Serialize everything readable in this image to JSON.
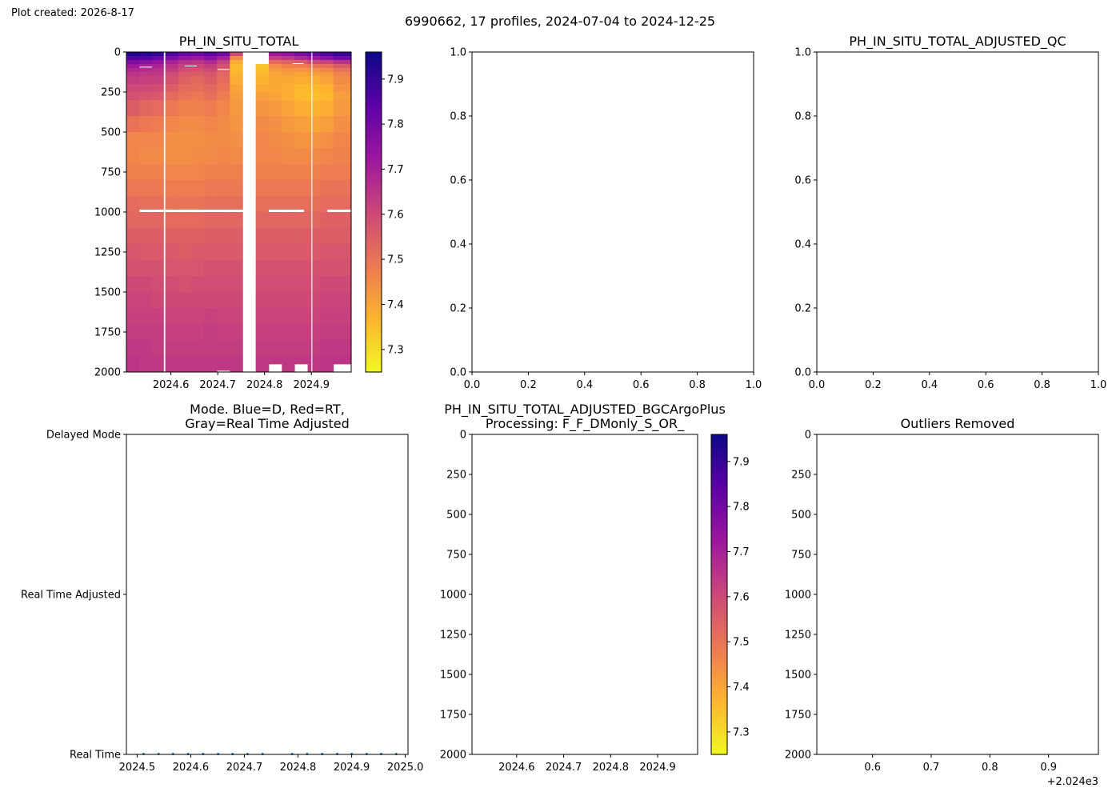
{
  "created_label": "Plot created: 2026-8-17",
  "suptitle": "6990662, 17 profiles, 2024-07-04 to 2024-12-25",
  "colormap": [
    "#0d0887",
    "#5c01a6",
    "#9c179e",
    "#cc4778",
    "#ed7953",
    "#fdb42f",
    "#f0f921"
  ],
  "chart_data": [
    {
      "id": "ph_raw",
      "type": "heatmap",
      "title": "PH_IN_SITU_TOTAL",
      "x": {
        "min": 2024.505,
        "max": 2024.985,
        "ticks": [
          2024.6,
          2024.7,
          2024.8,
          2024.9
        ],
        "tick_labels": [
          "2024.6",
          "2024.7",
          "2024.8",
          "2024.9"
        ]
      },
      "y": {
        "min": 0,
        "max": 2000,
        "inverted": true,
        "ticks": [
          0,
          250,
          500,
          750,
          1000,
          1250,
          1500,
          1750,
          2000
        ],
        "tick_labels": [
          "0",
          "250",
          "500",
          "750",
          "1000",
          "1250",
          "1500",
          "1750",
          "2000"
        ]
      },
      "colorbar": {
        "min": 7.25,
        "max": 7.96,
        "ticks": [
          7.3,
          7.4,
          7.5,
          7.6,
          7.7,
          7.8,
          7.9
        ],
        "tick_labels": [
          "7.3",
          "7.4",
          "7.5",
          "7.6",
          "7.7",
          "7.8",
          "7.9"
        ]
      },
      "profile_times": [
        2024.505,
        2024.533,
        2024.56,
        2024.588,
        2024.616,
        2024.643,
        2024.671,
        2024.698,
        2024.726,
        2024.754,
        2024.781,
        2024.809,
        2024.837,
        2024.864,
        2024.892,
        2024.919,
        2024.947,
        2024.985
      ],
      "depth_levels": [
        0,
        25,
        50,
        75,
        100,
        125,
        150,
        200,
        250,
        300,
        400,
        500,
        600,
        700,
        800,
        900,
        1000,
        1100,
        1200,
        1300,
        1400,
        1500,
        1600,
        1700,
        1800,
        1900,
        2000
      ],
      "profiles": [
        {
          "t0": 2024.505,
          "t1": 2024.533,
          "bottom": 2000,
          "ph": [
            7.93,
            7.86,
            7.78,
            7.72,
            7.68,
            7.65,
            7.63,
            7.6,
            7.58,
            7.55,
            7.5,
            7.46,
            7.46,
            7.47,
            7.49,
            7.52,
            7.53,
            7.55,
            7.57,
            7.58,
            7.6,
            7.61,
            7.62,
            7.63,
            7.64,
            7.65
          ]
        },
        {
          "t0": 2024.533,
          "t1": 2024.56,
          "bottom": 2000,
          "ph": [
            7.92,
            7.85,
            7.76,
            7.7,
            7.67,
            7.64,
            7.62,
            7.6,
            7.57,
            7.53,
            7.49,
            7.46,
            7.45,
            7.47,
            7.49,
            7.51,
            7.53,
            7.55,
            7.56,
            7.58,
            7.6,
            7.61,
            7.62,
            7.63,
            7.64,
            7.64
          ]
        },
        {
          "t0": 2024.56,
          "t1": 2024.588,
          "bottom": 2000,
          "ph": [
            7.9,
            7.82,
            7.74,
            7.69,
            7.66,
            7.64,
            7.62,
            7.59,
            7.56,
            7.52,
            7.48,
            7.46,
            7.45,
            7.47,
            7.49,
            7.51,
            7.53,
            7.55,
            7.56,
            7.58,
            7.59,
            7.6,
            7.62,
            7.63,
            7.63,
            7.64
          ]
        },
        {
          "t0": 2024.588,
          "t1": 2024.616,
          "bottom": 2000,
          "ph": [
            7.86,
            7.78,
            7.7,
            7.66,
            7.63,
            7.6,
            7.58,
            7.55,
            7.52,
            7.49,
            7.46,
            7.44,
            7.44,
            7.46,
            7.48,
            7.5,
            7.52,
            7.54,
            7.56,
            7.57,
            7.59,
            7.6,
            7.61,
            7.62,
            7.63,
            7.64
          ]
        },
        {
          "t0": 2024.616,
          "t1": 2024.643,
          "bottom": 2000,
          "ph": [
            7.82,
            7.74,
            7.66,
            7.62,
            7.59,
            7.56,
            7.54,
            7.52,
            7.5,
            7.47,
            7.45,
            7.44,
            7.44,
            7.46,
            7.48,
            7.5,
            7.52,
            7.54,
            7.55,
            7.57,
            7.58,
            7.6,
            7.61,
            7.62,
            7.63,
            7.64
          ]
        },
        {
          "t0": 2024.643,
          "t1": 2024.671,
          "bottom": 2000,
          "ph": [
            7.8,
            7.72,
            7.65,
            7.61,
            7.58,
            7.55,
            7.53,
            7.51,
            7.49,
            7.47,
            7.45,
            7.44,
            7.45,
            7.46,
            7.48,
            7.5,
            7.52,
            7.54,
            7.56,
            7.57,
            7.59,
            7.6,
            7.61,
            7.62,
            7.63,
            7.64
          ]
        },
        {
          "t0": 2024.671,
          "t1": 2024.698,
          "bottom": 2000,
          "ph": [
            7.84,
            7.76,
            7.68,
            7.63,
            7.6,
            7.57,
            7.55,
            7.53,
            7.51,
            7.48,
            7.46,
            7.45,
            7.45,
            7.47,
            7.49,
            7.51,
            7.53,
            7.55,
            7.56,
            7.58,
            7.59,
            7.6,
            7.62,
            7.63,
            7.63,
            7.64
          ]
        },
        {
          "t0": 2024.698,
          "t1": 2024.726,
          "bottom": 1990,
          "ph": [
            7.8,
            7.7,
            7.62,
            7.58,
            7.55,
            7.53,
            7.52,
            7.5,
            7.48,
            7.46,
            7.45,
            7.45,
            7.46,
            7.47,
            7.49,
            7.51,
            7.53,
            7.55,
            7.56,
            7.58,
            7.59,
            7.6,
            7.61,
            7.62,
            7.63,
            7.64
          ]
        },
        {
          "t0": 2024.726,
          "t1": 2024.754,
          "bottom": 2000,
          "ph": [
            7.6,
            7.45,
            7.38,
            7.36,
            7.36,
            7.37,
            7.38,
            7.4,
            7.41,
            7.42,
            7.43,
            7.44,
            7.45,
            7.47,
            7.49,
            7.51,
            7.53,
            7.55,
            7.56,
            7.58,
            7.59,
            7.6,
            7.61,
            7.62,
            7.63,
            7.64
          ]
        },
        {
          "t0": 2024.781,
          "t1": 2024.809,
          "top": 75,
          "bottom": 2000,
          "ph": [
            7.34,
            7.34,
            7.34,
            7.34,
            7.35,
            7.36,
            7.37,
            7.39,
            7.41,
            7.43,
            7.45,
            7.46,
            7.46,
            7.47,
            7.49,
            7.51,
            7.53,
            7.55,
            7.56,
            7.58,
            7.59,
            7.6,
            7.61,
            7.62,
            7.63,
            7.64
          ]
        },
        {
          "t0": 2024.809,
          "t1": 2024.837,
          "bottom": 1950,
          "ph": [
            7.72,
            7.62,
            7.52,
            7.45,
            7.42,
            7.4,
            7.39,
            7.39,
            7.4,
            7.42,
            7.44,
            7.45,
            7.46,
            7.47,
            7.49,
            7.51,
            7.53,
            7.55,
            7.56,
            7.58,
            7.59,
            7.6,
            7.61,
            7.62,
            7.63,
            7.64
          ]
        },
        {
          "t0": 2024.837,
          "t1": 2024.864,
          "bottom": 2000,
          "ph": [
            7.74,
            7.64,
            7.54,
            7.47,
            7.43,
            7.41,
            7.39,
            7.38,
            7.38,
            7.4,
            7.42,
            7.44,
            7.45,
            7.47,
            7.49,
            7.51,
            7.53,
            7.55,
            7.56,
            7.58,
            7.59,
            7.6,
            7.61,
            7.62,
            7.63,
            7.64
          ]
        },
        {
          "t0": 2024.864,
          "t1": 2024.892,
          "bottom": 1950,
          "ph": [
            7.78,
            7.68,
            7.56,
            7.48,
            7.43,
            7.4,
            7.38,
            7.36,
            7.36,
            7.38,
            7.41,
            7.43,
            7.45,
            7.47,
            7.49,
            7.51,
            7.53,
            7.55,
            7.56,
            7.58,
            7.59,
            7.6,
            7.61,
            7.62,
            7.63,
            7.64
          ]
        },
        {
          "t0": 2024.892,
          "t1": 2024.919,
          "bottom": 2000,
          "ph": [
            7.82,
            7.72,
            7.6,
            7.5,
            7.44,
            7.41,
            7.38,
            7.36,
            7.35,
            7.37,
            7.4,
            7.43,
            7.45,
            7.47,
            7.49,
            7.51,
            7.53,
            7.55,
            7.56,
            7.58,
            7.59,
            7.6,
            7.61,
            7.62,
            7.63,
            7.64
          ]
        },
        {
          "t0": 2024.919,
          "t1": 2024.947,
          "bottom": 2000,
          "ph": [
            7.86,
            7.76,
            7.62,
            7.52,
            7.46,
            7.42,
            7.4,
            7.37,
            7.36,
            7.38,
            7.41,
            7.44,
            7.46,
            7.48,
            7.5,
            7.52,
            7.54,
            7.55,
            7.57,
            7.58,
            7.6,
            7.61,
            7.62,
            7.63,
            7.64,
            7.65
          ]
        },
        {
          "t0": 2024.947,
          "t1": 2024.985,
          "bottom": 1950,
          "ph": [
            7.9,
            7.8,
            7.66,
            7.56,
            7.5,
            7.47,
            7.45,
            7.43,
            7.41,
            7.42,
            7.44,
            7.46,
            7.47,
            7.48,
            7.5,
            7.52,
            7.54,
            7.55,
            7.57,
            7.58,
            7.6,
            7.61,
            7.62,
            7.63,
            7.64,
            7.65
          ]
        }
      ],
      "gaps_vertical": [
        {
          "t0": 2024.585,
          "t1": 2024.588,
          "from": 0,
          "to": 2000
        },
        {
          "t0": 2024.754,
          "t1": 2024.781,
          "from": 0,
          "to": 2000
        },
        {
          "t0": 2024.9,
          "t1": 2024.902,
          "from": 0,
          "to": 2000
        }
      ],
      "gaps_horizontal": [
        {
          "t0": 2024.533,
          "t1": 2024.754,
          "from": 985,
          "to": 1000
        },
        {
          "t0": 2024.809,
          "t1": 2024.884,
          "from": 985,
          "to": 1000
        },
        {
          "t0": 2024.934,
          "t1": 2024.985,
          "from": 985,
          "to": 1000
        },
        {
          "t0": 2024.533,
          "t1": 2024.56,
          "from": 92,
          "to": 97
        },
        {
          "t0": 2024.63,
          "t1": 2024.655,
          "from": 85,
          "to": 90
        },
        {
          "t0": 2024.7,
          "t1": 2024.725,
          "from": 107,
          "to": 112
        },
        {
          "t0": 2024.86,
          "t1": 2024.883,
          "from": 70,
          "to": 75
        }
      ]
    },
    {
      "id": "adjusted_qc",
      "type": "scatter",
      "title": "PH_IN_SITU_TOTAL_ADJUSTED_QC",
      "x": {
        "min": 0,
        "max": 1,
        "ticks": [
          0,
          0.2,
          0.4,
          0.6,
          0.8,
          1.0
        ],
        "tick_labels": [
          "0.0",
          "0.2",
          "0.4",
          "0.6",
          "0.8",
          "1.0"
        ]
      },
      "y": {
        "min": 0,
        "max": 1,
        "ticks": [
          0,
          0.2,
          0.4,
          0.6,
          0.8,
          1.0
        ],
        "tick_labels": [
          "0.0",
          "0.2",
          "0.4",
          "0.6",
          "0.8",
          "1.0"
        ]
      },
      "values": []
    },
    {
      "id": "mode",
      "type": "scatter",
      "title": "Mode. Blue=D, Red=RT,\nGray=Real Time Adjusted",
      "x": {
        "min": 2024.48,
        "max": 2025.005,
        "ticks": [
          2024.5,
          2024.6,
          2024.7,
          2024.8,
          2024.9,
          2025.0
        ],
        "tick_labels": [
          "2024.5",
          "2024.6",
          "2024.7",
          "2024.8",
          "2024.9",
          "2025.0"
        ]
      },
      "y": {
        "min": 0,
        "max": 2,
        "ticks": [
          0,
          1,
          2
        ],
        "tick_labels": [
          "Real Time",
          "Real Time Adjusted",
          "Delayed Mode"
        ]
      },
      "points": [
        {
          "x": 2024.512,
          "y": 0
        },
        {
          "x": 2024.54,
          "y": 0
        },
        {
          "x": 2024.567,
          "y": 0
        },
        {
          "x": 2024.595,
          "y": 0
        },
        {
          "x": 2024.623,
          "y": 0
        },
        {
          "x": 2024.651,
          "y": 0
        },
        {
          "x": 2024.678,
          "y": 0
        },
        {
          "x": 2024.706,
          "y": 0
        },
        {
          "x": 2024.734,
          "y": 0
        },
        {
          "x": 2024.789,
          "y": 0
        },
        {
          "x": 2024.817,
          "y": 0
        },
        {
          "x": 2024.845,
          "y": 0
        },
        {
          "x": 2024.873,
          "y": 0
        },
        {
          "x": 2024.9,
          "y": 0
        },
        {
          "x": 2024.928,
          "y": 0
        },
        {
          "x": 2024.955,
          "y": 0
        },
        {
          "x": 2024.983,
          "y": 0
        }
      ],
      "point_color": "#1f77b4"
    },
    {
      "id": "adjusted_bgc",
      "type": "heatmap",
      "title": "PH_IN_SITU_TOTAL_ADJUSTED_BGCArgoPlus\nProcessing: F_F_DMonly_S_OR_",
      "x": {
        "min": 2024.505,
        "max": 2024.985,
        "ticks": [
          2024.6,
          2024.7,
          2024.8,
          2024.9
        ],
        "tick_labels": [
          "2024.6",
          "2024.7",
          "2024.8",
          "2024.9"
        ]
      },
      "y": {
        "min": 0,
        "max": 2000,
        "inverted": true,
        "ticks": [
          0,
          250,
          500,
          750,
          1000,
          1250,
          1500,
          1750,
          2000
        ],
        "tick_labels": [
          "0",
          "250",
          "500",
          "750",
          "1000",
          "1250",
          "1500",
          "1750",
          "2000"
        ]
      },
      "colorbar": {
        "min": 7.25,
        "max": 7.96,
        "ticks": [
          7.3,
          7.4,
          7.5,
          7.6,
          7.7,
          7.8,
          7.9
        ],
        "tick_labels": [
          "7.3",
          "7.4",
          "7.5",
          "7.6",
          "7.7",
          "7.8",
          "7.9"
        ]
      },
      "profiles": []
    },
    {
      "id": "outliers",
      "type": "scatter",
      "title": "Outliers Removed",
      "x": {
        "min": 2024.505,
        "max": 2024.985,
        "ticks": [
          2024.6,
          2024.7,
          2024.8,
          2024.9
        ],
        "tick_labels": [
          "0.6",
          "0.7",
          "0.8",
          "0.9"
        ],
        "offset_label": "+2.024e3"
      },
      "y": {
        "min": 0,
        "max": 2000,
        "inverted": true,
        "ticks": [
          0,
          250,
          500,
          750,
          1000,
          1250,
          1500,
          1750,
          2000
        ],
        "tick_labels": [
          "0",
          "250",
          "500",
          "750",
          "1000",
          "1250",
          "1500",
          "1750",
          "2000"
        ]
      },
      "values": []
    }
  ]
}
